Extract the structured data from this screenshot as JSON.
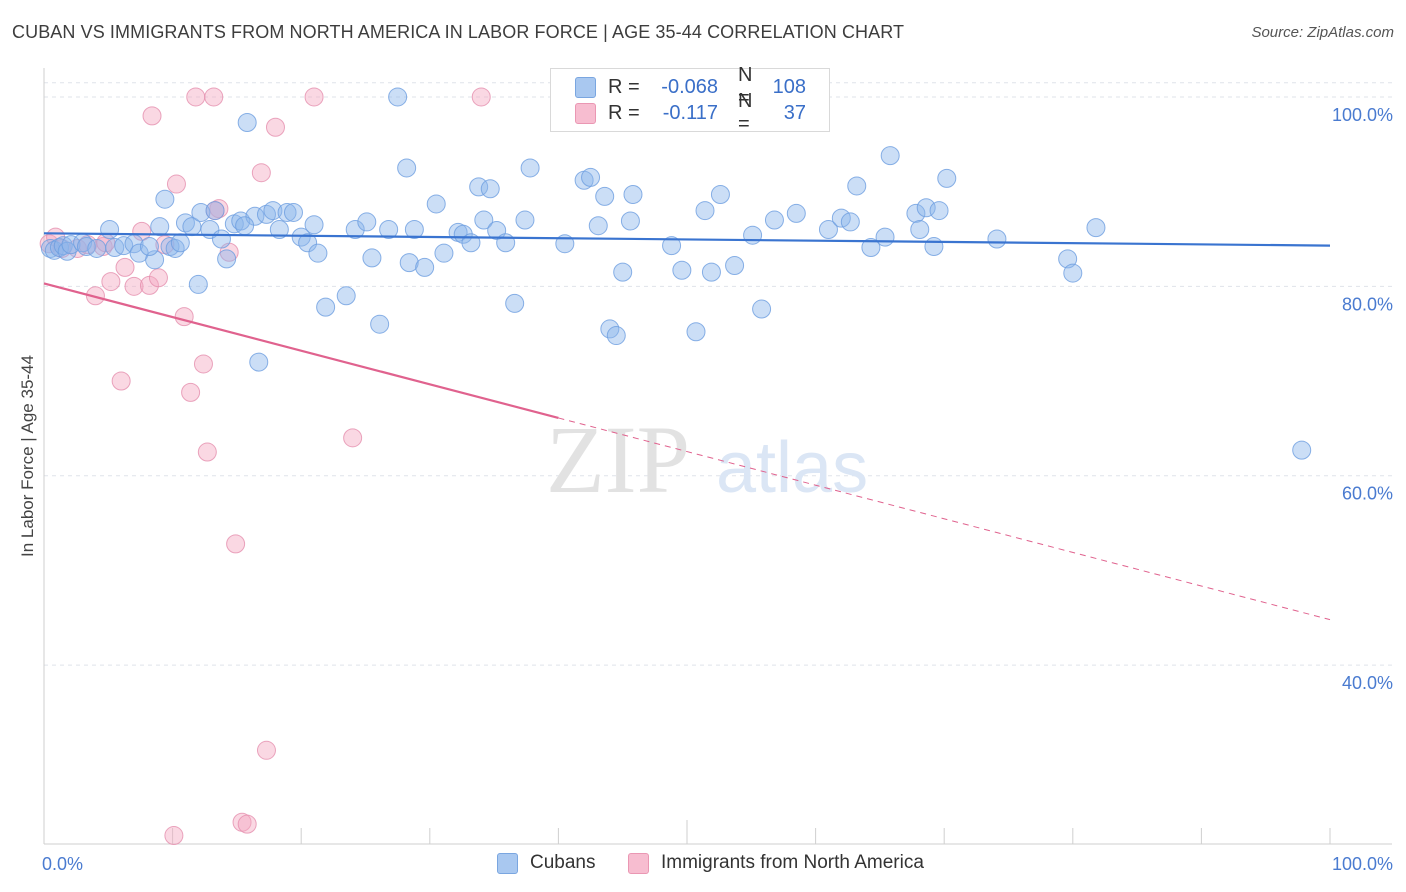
{
  "title": "CUBAN VS IMMIGRANTS FROM NORTH AMERICA IN LABOR FORCE | AGE 35-44 CORRELATION CHART",
  "source": "Source: ZipAtlas.com",
  "watermark": {
    "zip": "ZIP",
    "atlas": "atlas"
  },
  "legend_top": [
    {
      "r_label": "R =",
      "r_value": "-0.068",
      "n_label": "N =",
      "n_value": "108",
      "color": "#a9c8f0",
      "border": "#7aa6e0"
    },
    {
      "r_label": "R =",
      "r_value": "-0.117",
      "n_label": "N =",
      "n_value": "37",
      "color": "#f7bdd0",
      "border": "#ea97b3"
    }
  ],
  "legend_bottom": [
    {
      "label": "Cubans",
      "color": "#a9c8f0",
      "border": "#7aa6e0"
    },
    {
      "label": "Immigrants from North America",
      "color": "#f7bdd0",
      "border": "#ea97b3"
    }
  ],
  "colors": {
    "blue_point": "#8cb6ea",
    "blue_line": "#3a74d0",
    "pink_point": "#f3a9c2",
    "pink_line": "#e0628e",
    "axis_text": "#4a7bd0",
    "grid": "#dfe3ea"
  },
  "chart_data": {
    "type": "scatter",
    "title": "CUBAN VS IMMIGRANTS FROM NORTH AMERICA IN LABOR FORCE | AGE 35-44 CORRELATION CHART",
    "xlabel": "",
    "ylabel": "In Labor Force | Age 35-44",
    "xlim": [
      0,
      100
    ],
    "ylim": [
      21,
      102
    ],
    "x_tick_labels": [
      {
        "value": 0,
        "label": "0.0%"
      },
      {
        "value": 100,
        "label": "100.0%"
      }
    ],
    "y_ticks": [
      {
        "value": 100,
        "label": "100.0%"
      },
      {
        "value": 80,
        "label": "80.0%"
      },
      {
        "value": 60,
        "label": "60.0%"
      },
      {
        "value": 40,
        "label": "40.0%"
      }
    ],
    "grid": true,
    "legend_position": "top-center",
    "series": [
      {
        "name": "Cubans",
        "r": -0.068,
        "n": 108,
        "trend": {
          "x0": 0,
          "y0": 85.6,
          "x1": 100,
          "y1": 84.3,
          "dashed_from": null
        },
        "points": [
          [
            0.5,
            84.0
          ],
          [
            0.8,
            83.8
          ],
          [
            1.2,
            84.1
          ],
          [
            1.5,
            84.3
          ],
          [
            1.8,
            83.7
          ],
          [
            2.1,
            84.4
          ],
          [
            3.0,
            84.6
          ],
          [
            3.3,
            84.2
          ],
          [
            4.1,
            84.0
          ],
          [
            5.1,
            86.0
          ],
          [
            5.5,
            84.1
          ],
          [
            6.2,
            84.3
          ],
          [
            7.0,
            84.5
          ],
          [
            7.4,
            83.5
          ],
          [
            8.6,
            82.8
          ],
          [
            8.2,
            84.2
          ],
          [
            9.0,
            86.3
          ],
          [
            9.4,
            89.2
          ],
          [
            9.8,
            84.2
          ],
          [
            10.2,
            84.0
          ],
          [
            10.6,
            84.6
          ],
          [
            11.0,
            86.7
          ],
          [
            11.5,
            86.3
          ],
          [
            12.0,
            80.2
          ],
          [
            12.2,
            87.8
          ],
          [
            12.9,
            86.0
          ],
          [
            13.3,
            88.0
          ],
          [
            13.8,
            85.0
          ],
          [
            14.2,
            82.9
          ],
          [
            14.8,
            86.6
          ],
          [
            15.3,
            86.9
          ],
          [
            15.8,
            97.3
          ],
          [
            16.4,
            87.4
          ],
          [
            16.7,
            72.0
          ],
          [
            17.3,
            87.6
          ],
          [
            17.8,
            88.0
          ],
          [
            18.3,
            86.0
          ],
          [
            18.9,
            87.8
          ],
          [
            19.4,
            87.8
          ],
          [
            20.0,
            85.2
          ],
          [
            20.5,
            84.6
          ],
          [
            21.0,
            86.5
          ],
          [
            21.3,
            83.5
          ],
          [
            21.9,
            77.8
          ],
          [
            23.5,
            79.0
          ],
          [
            24.2,
            86.0
          ],
          [
            25.1,
            86.8
          ],
          [
            25.5,
            83.0
          ],
          [
            26.1,
            76.0
          ],
          [
            26.8,
            86.0
          ],
          [
            27.5,
            100.0
          ],
          [
            28.2,
            92.5
          ],
          [
            28.4,
            82.5
          ],
          [
            28.8,
            86.0
          ],
          [
            29.6,
            82.0
          ],
          [
            30.5,
            88.7
          ],
          [
            31.1,
            83.5
          ],
          [
            32.2,
            85.7
          ],
          [
            32.6,
            85.5
          ],
          [
            33.2,
            84.6
          ],
          [
            33.8,
            90.5
          ],
          [
            34.2,
            87.0
          ],
          [
            34.7,
            90.3
          ],
          [
            35.2,
            85.9
          ],
          [
            35.9,
            84.6
          ],
          [
            36.6,
            78.2
          ],
          [
            37.4,
            87.0
          ],
          [
            37.8,
            92.5
          ],
          [
            40.5,
            84.5
          ],
          [
            42.0,
            91.2
          ],
          [
            42.5,
            91.5
          ],
          [
            43.1,
            86.4
          ],
          [
            43.6,
            89.5
          ],
          [
            44.0,
            75.5
          ],
          [
            44.5,
            74.8
          ],
          [
            45.0,
            81.5
          ],
          [
            45.6,
            86.9
          ],
          [
            45.8,
            89.7
          ],
          [
            48.8,
            84.3
          ],
          [
            49.6,
            81.7
          ],
          [
            50.7,
            75.2
          ],
          [
            51.4,
            88.0
          ],
          [
            51.9,
            81.5
          ],
          [
            52.6,
            89.7
          ],
          [
            53.7,
            82.2
          ],
          [
            55.1,
            85.4
          ],
          [
            55.8,
            77.6
          ],
          [
            56.8,
            87.0
          ],
          [
            58.5,
            87.7
          ],
          [
            61.0,
            86.0
          ],
          [
            62.0,
            87.2
          ],
          [
            62.7,
            86.8
          ],
          [
            63.2,
            90.6
          ],
          [
            64.3,
            84.1
          ],
          [
            65.4,
            85.2
          ],
          [
            65.8,
            93.8
          ],
          [
            67.8,
            87.7
          ],
          [
            68.1,
            86.0
          ],
          [
            68.6,
            88.3
          ],
          [
            69.2,
            84.2
          ],
          [
            69.6,
            88.0
          ],
          [
            70.2,
            91.4
          ],
          [
            74.1,
            85.0
          ],
          [
            79.6,
            82.9
          ],
          [
            80.0,
            81.4
          ],
          [
            81.8,
            86.2
          ],
          [
            97.8,
            62.7
          ],
          [
            15.6,
            86.4
          ]
        ]
      },
      {
        "name": "Immigrants from North America",
        "r": -0.117,
        "n": 37,
        "trend": {
          "x0": 0,
          "y0": 80.3,
          "x1": 100,
          "y1": 44.8,
          "dashed_from": 40
        },
        "points": [
          [
            0.4,
            84.5
          ],
          [
            0.9,
            85.2
          ],
          [
            1.4,
            84.0
          ],
          [
            2.6,
            84.0
          ],
          [
            3.4,
            84.4
          ],
          [
            4.0,
            79.0
          ],
          [
            4.6,
            84.2
          ],
          [
            5.2,
            80.5
          ],
          [
            6.0,
            70.0
          ],
          [
            6.3,
            82.0
          ],
          [
            7.0,
            80.0
          ],
          [
            7.6,
            85.8
          ],
          [
            8.2,
            80.1
          ],
          [
            8.4,
            98.0
          ],
          [
            8.9,
            80.9
          ],
          [
            9.4,
            84.4
          ],
          [
            10.1,
            22.0
          ],
          [
            10.3,
            90.8
          ],
          [
            10.9,
            76.8
          ],
          [
            11.4,
            68.8
          ],
          [
            11.8,
            100.0
          ],
          [
            12.4,
            71.8
          ],
          [
            12.7,
            62.5
          ],
          [
            13.2,
            100.0
          ],
          [
            13.6,
            88.2
          ],
          [
            14.4,
            83.6
          ],
          [
            14.9,
            52.8
          ],
          [
            15.4,
            23.4
          ],
          [
            15.8,
            23.2
          ],
          [
            16.9,
            92.0
          ],
          [
            17.3,
            31.0
          ],
          [
            18.0,
            96.8
          ],
          [
            21.0,
            100.0
          ],
          [
            24.0,
            64.0
          ],
          [
            34.0,
            100.0
          ],
          [
            13.3,
            88.0
          ],
          [
            4.8,
            84.6
          ]
        ]
      }
    ]
  }
}
